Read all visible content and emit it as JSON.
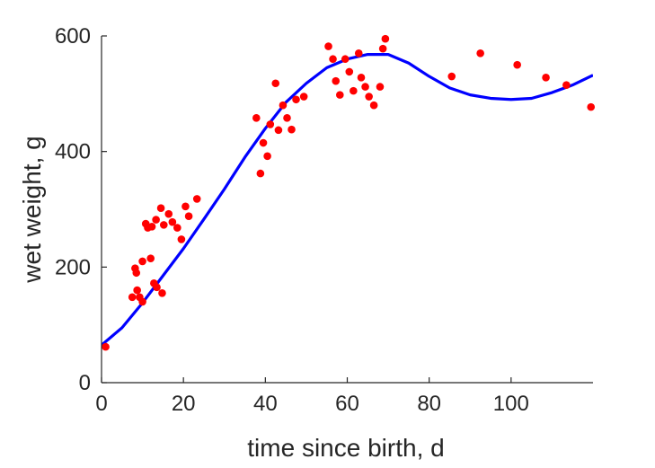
{
  "chart_data": {
    "type": "scatter",
    "title": "",
    "xlabel": "time since birth, d",
    "ylabel": "wet weight, g",
    "xlim": [
      0,
      120
    ],
    "ylim": [
      0,
      600
    ],
    "xticks": [
      0,
      20,
      40,
      60,
      80,
      100
    ],
    "yticks": [
      0,
      200,
      400,
      600
    ],
    "grid": false,
    "legend": "none",
    "series": [
      {
        "kind": "scatter",
        "color": "#ff0000",
        "points": [
          [
            1,
            62
          ],
          [
            7.5,
            148
          ],
          [
            8.2,
            198
          ],
          [
            8.5,
            190
          ],
          [
            8.7,
            160
          ],
          [
            9.3,
            148
          ],
          [
            10,
            210
          ],
          [
            10,
            140
          ],
          [
            10.8,
            275
          ],
          [
            11.3,
            268
          ],
          [
            12,
            215
          ],
          [
            12.3,
            270
          ],
          [
            12.8,
            172
          ],
          [
            13.3,
            282
          ],
          [
            13.5,
            165
          ],
          [
            14.5,
            302
          ],
          [
            14.8,
            155
          ],
          [
            15.2,
            273
          ],
          [
            16.4,
            292
          ],
          [
            17.3,
            278
          ],
          [
            18.5,
            268
          ],
          [
            19.5,
            248
          ],
          [
            20.5,
            305
          ],
          [
            21.3,
            288
          ],
          [
            23.3,
            318
          ],
          [
            37.8,
            458
          ],
          [
            38.8,
            362
          ],
          [
            39.5,
            415
          ],
          [
            40.5,
            392
          ],
          [
            41.2,
            447
          ],
          [
            42.5,
            518
          ],
          [
            43.2,
            437
          ],
          [
            44.3,
            480
          ],
          [
            45.3,
            458
          ],
          [
            46.4,
            438
          ],
          [
            47.5,
            490
          ],
          [
            49.4,
            495
          ],
          [
            55.4,
            582
          ],
          [
            56.5,
            560
          ],
          [
            57.2,
            522
          ],
          [
            58.2,
            498
          ],
          [
            59.5,
            560
          ],
          [
            60.5,
            538
          ],
          [
            61.5,
            505
          ],
          [
            62.8,
            570
          ],
          [
            63.4,
            528
          ],
          [
            64.4,
            512
          ],
          [
            65.3,
            495
          ],
          [
            66.5,
            480
          ],
          [
            68,
            512
          ],
          [
            68.7,
            578
          ],
          [
            69.3,
            595
          ],
          [
            85.5,
            530
          ],
          [
            92.5,
            570
          ],
          [
            101.5,
            550
          ],
          [
            108.5,
            528
          ],
          [
            113.5,
            515
          ],
          [
            119.5,
            477
          ]
        ]
      },
      {
        "kind": "line",
        "color": "#0000ff",
        "points": [
          [
            0,
            65
          ],
          [
            5,
            95
          ],
          [
            10,
            138
          ],
          [
            15,
            185
          ],
          [
            20,
            232
          ],
          [
            25,
            283
          ],
          [
            30,
            335
          ],
          [
            35,
            390
          ],
          [
            40,
            440
          ],
          [
            45,
            485
          ],
          [
            50,
            518
          ],
          [
            55,
            545
          ],
          [
            60,
            560
          ],
          [
            65,
            568
          ],
          [
            70,
            568
          ],
          [
            75,
            553
          ],
          [
            80,
            530
          ],
          [
            85,
            510
          ],
          [
            90,
            498
          ],
          [
            95,
            492
          ],
          [
            100,
            490
          ],
          [
            105,
            492
          ],
          [
            110,
            502
          ],
          [
            115,
            515
          ],
          [
            120,
            532
          ]
        ]
      }
    ]
  }
}
